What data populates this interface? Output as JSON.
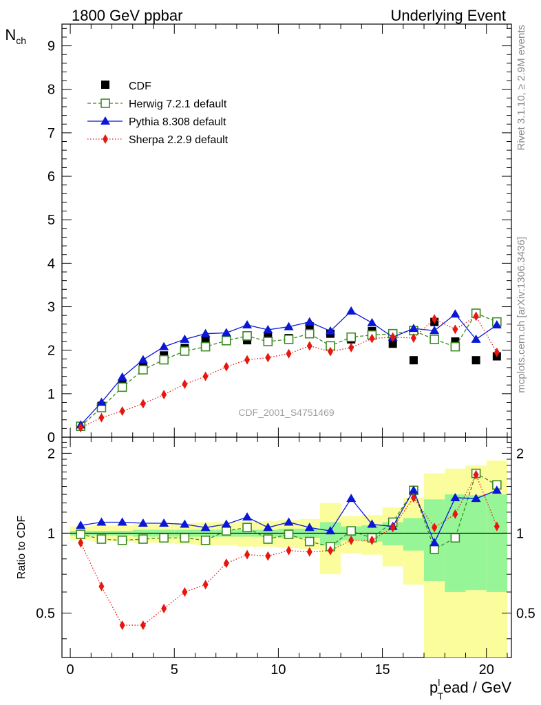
{
  "header": {
    "left": "1800 GeV ppbar",
    "right": "Underlying Event"
  },
  "side": {
    "rivet": "Rivet 3.1.10, ≥ 2.9M events",
    "mcplots": "mcplots.cern.ch [arXiv:1306.3436]"
  },
  "watermark": "CDF_2001_S4751469",
  "axes": {
    "ylabel_main_base": "N",
    "ylabel_main_sub": "ch",
    "ylabel_ratio": "Ratio to CDF",
    "xlabel_p": "p",
    "xlabel_sup": "l",
    "xlabel_sub": "T",
    "xlabel_rest": "ead / GeV"
  },
  "legend": {
    "cdf": "CDF",
    "herwig": "Herwig 7.2.1 default",
    "pythia": "Pythia 8.308 default",
    "sherpa": "Sherpa 2.2.9 default"
  },
  "colors": {
    "cdf": "#000000",
    "herwig": "#3a8a1e",
    "pythia": "#0a17d6",
    "sherpa": "#e8160e",
    "band_inner": "#96f596",
    "band_outer": "#fbfd9c"
  },
  "chart_data": [
    {
      "type": "scatter",
      "panel": "main",
      "xlim": [
        -0.4,
        21.2
      ],
      "ylim": [
        0,
        9.5
      ],
      "xticks": [
        0,
        5,
        10,
        15,
        20
      ],
      "yticks": [
        0,
        1,
        2,
        3,
        4,
        5,
        6,
        7,
        8,
        9
      ],
      "x": [
        0.5,
        1.5,
        2.5,
        3.5,
        4.5,
        5.5,
        6.5,
        7.5,
        8.5,
        9.5,
        10.5,
        11.5,
        12.5,
        13.5,
        14.5,
        15.5,
        16.5,
        17.5,
        18.5,
        19.5,
        20.5
      ],
      "series": [
        {
          "key": "cdf",
          "values": [
            0.25,
            0.72,
            1.22,
            1.63,
            1.88,
            2.05,
            2.22,
            2.22,
            2.23,
            2.32,
            2.28,
            2.55,
            2.38,
            2.25,
            2.44,
            2.15,
            1.77,
            2.65,
            2.2,
            1.77,
            1.86
          ]
        },
        {
          "key": "herwig",
          "values": [
            0.25,
            0.68,
            1.15,
            1.55,
            1.78,
            1.98,
            2.08,
            2.22,
            2.33,
            2.2,
            2.25,
            2.38,
            2.1,
            2.3,
            2.35,
            2.38,
            2.45,
            2.25,
            2.08,
            2.85,
            2.65
          ]
        },
        {
          "key": "pythia",
          "values": [
            0.28,
            0.8,
            1.38,
            1.78,
            2.08,
            2.25,
            2.38,
            2.4,
            2.58,
            2.47,
            2.54,
            2.65,
            2.44,
            2.9,
            2.63,
            2.3,
            2.5,
            2.45,
            2.83,
            2.25,
            2.58
          ]
        },
        {
          "key": "sherpa",
          "values": [
            0.22,
            0.45,
            0.6,
            0.77,
            0.98,
            1.22,
            1.4,
            1.62,
            1.78,
            1.83,
            1.92,
            2.1,
            1.97,
            2.06,
            2.27,
            2.3,
            2.28,
            2.72,
            2.48,
            2.78,
            1.95
          ]
        }
      ]
    },
    {
      "type": "scatter",
      "panel": "ratio",
      "xlim": [
        -0.4,
        21.2
      ],
      "ylim": [
        0.34,
        2.3
      ],
      "yticks": [
        0.5,
        1,
        2
      ],
      "reference_line": 1,
      "band_inner_halfwidth": [
        0.02,
        0.02,
        0.02,
        0.03,
        0.03,
        0.03,
        0.03,
        0.03,
        0.03,
        0.03,
        0.04,
        0.04,
        0.1,
        0.06,
        0.07,
        0.1,
        0.14,
        0.34,
        0.4,
        0.39,
        0.4
      ],
      "band_outer_halfwidth": [
        0.06,
        0.07,
        0.07,
        0.08,
        0.08,
        0.09,
        0.1,
        0.1,
        0.11,
        0.11,
        0.12,
        0.13,
        0.3,
        0.16,
        0.17,
        0.25,
        0.36,
        0.68,
        0.75,
        0.8,
        0.88
      ],
      "series": [
        {
          "key": "herwig",
          "values": [
            0.99,
            0.95,
            0.94,
            0.95,
            0.96,
            0.96,
            0.94,
            1.02,
            1.05,
            0.95,
            0.99,
            0.93,
            0.89,
            1.02,
            0.96,
            1.1,
            1.45,
            0.87,
            0.96,
            1.68,
            1.52
          ]
        },
        {
          "key": "pythia",
          "values": [
            1.07,
            1.1,
            1.1,
            1.09,
            1.09,
            1.08,
            1.05,
            1.08,
            1.15,
            1.05,
            1.1,
            1.05,
            1.02,
            1.35,
            1.08,
            1.06,
            1.45,
            0.92,
            1.36,
            1.35,
            1.45
          ]
        },
        {
          "key": "sherpa",
          "values": [
            0.92,
            0.63,
            0.45,
            0.45,
            0.52,
            0.6,
            0.64,
            0.77,
            0.83,
            0.82,
            0.86,
            0.85,
            0.86,
            0.94,
            0.94,
            1.05,
            1.36,
            1.05,
            1.18,
            1.66,
            1.06
          ]
        }
      ]
    }
  ]
}
